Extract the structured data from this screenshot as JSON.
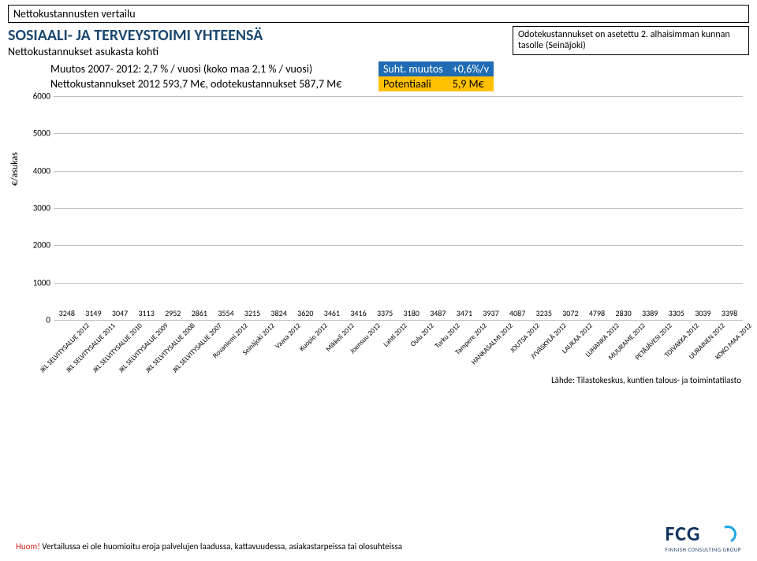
{
  "header": {
    "top_title": "Nettokustannusten vertailu",
    "main_title": "SOSIAALI- JA TERVEYSTOIMI YHTEENSÄ",
    "subtitle": "Nettokustannukset asukasta kohti",
    "note_box": "Odotekustannukset on asetettu 2. alhaisimman kunnan tasolle (Seinäjoki)"
  },
  "info": {
    "row1_label": "Muutos 2007- 2012: 2,7 % / vuosi (koko maa 2,1 % / vuosi)",
    "row1_mid": "Suht. muutos",
    "row1_right": "+0,6%/v",
    "row2_label": "Nettokustannukset 2012 593,7 M€, odotekustannukset 587,7 M€",
    "row2_mid": "Potentiaali",
    "row2_right": "5,9 M€"
  },
  "chart": {
    "type": "bar",
    "ylabel": "€/asukas",
    "ylim": [
      0,
      6000
    ],
    "ystep": 1000,
    "yticks": [
      0,
      1000,
      2000,
      3000,
      4000,
      5000,
      6000
    ],
    "grid_color": "#c0c0c0",
    "background_color": "#ffffff",
    "bar_width": 0.7,
    "label_fontsize": 10,
    "default_color": "#8bc34a",
    "categories": [
      "JKL SELVITYSALUE 2012",
      "JKL SELVITYSALUE 2011",
      "JKL SELVITYSALUE 2010",
      "JKL SELVITYSALUE 2009",
      "JKL SELVITYSALUE 2008",
      "JKL SELVITYSALUE 2007",
      "Rovaniemi 2012",
      "Seinäjoki 2012",
      "Vaasa 2012",
      "Kuopio 2012",
      "Mikkeli 2012",
      "Joensuu 2012",
      "Lahti 2012",
      "Oulu 2012",
      "Turku 2012",
      "Tampere 2012",
      "HANKASALMI 2012",
      "JOUTSA 2012",
      "JYVÄSKYLÄ 2012",
      "LAUKAA 2012",
      "LUHANKA 2012",
      "MUURAME 2012",
      "PETÄJÄVESI 2012",
      "TOIVAKKA 2012",
      "UURAINEN 2012",
      "KOKO MAA 2012"
    ],
    "values": [
      3248,
      3149,
      3047,
      3113,
      2952,
      2861,
      3554,
      3215,
      3824,
      3620,
      3461,
      3416,
      3375,
      3180,
      3487,
      3471,
      3937,
      4087,
      3235,
      3072,
      4798,
      2830,
      3389,
      3305,
      3039,
      3398
    ],
    "bar_colors": [
      "#70ad47",
      "#a9d18e",
      "#c5e0b4",
      "#d9e8cd",
      "#e8f0e1",
      "#f4d6d0",
      "#70ad47",
      "#70ad47",
      "#70ad47",
      "#70ad47",
      "#70ad47",
      "#70ad47",
      "#70ad47",
      "#70ad47",
      "#70ad47",
      "#70ad47",
      "#70ad47",
      "#70ad47",
      "#70ad47",
      "#70ad47",
      "#70ad47",
      "#70ad47",
      "#70ad47",
      "#70ad47",
      "#70ad47",
      "#000000"
    ]
  },
  "source": "Lähde: Tilastokeskus, kuntien talous- ja toimintatilasto",
  "footer": {
    "prefix": "Huom!",
    "text": " Vertailussa ei ole huomioitu eroja palvelujen laadussa, kattavuudessa, asiakastarpeissa tai olosuhteissa"
  },
  "logo": {
    "main": "FCG",
    "sub": "FINNISH CONSULTING GROUP"
  }
}
